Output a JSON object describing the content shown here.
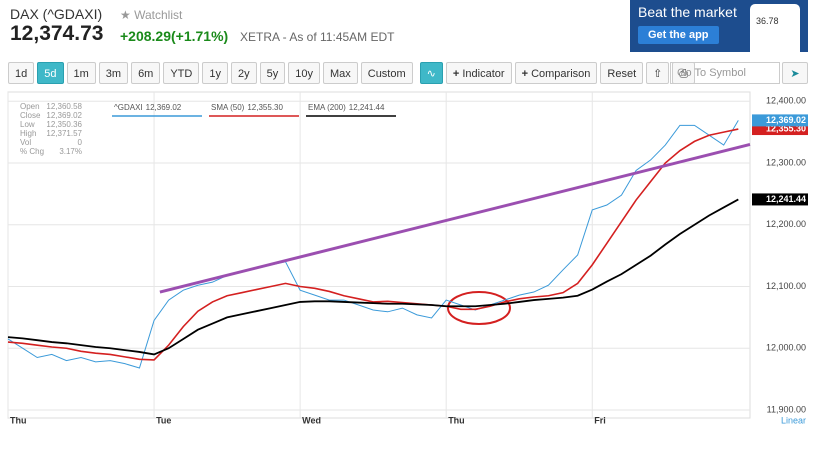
{
  "header": {
    "name": "DAX (^GDAXI)",
    "watchlist": "Watchlist",
    "price": "12,374.73",
    "change": "+208.29(+1.71%)",
    "exchange": "XETRA - As of 11:45AM EDT"
  },
  "ad": {
    "headline": "Beat the market",
    "button": "Get the app",
    "phone_value": "36.78"
  },
  "toolbar": {
    "ranges": [
      "1d",
      "5d",
      "1m",
      "3m",
      "6m",
      "YTD",
      "1y",
      "2y",
      "5y",
      "10y",
      "Max",
      "Custom"
    ],
    "active_range_index": 1,
    "indicator": "Indicator",
    "comparison": "Comparison",
    "reset": "Reset",
    "symbol_placeholder": "Go To Symbol"
  },
  "quote_panel": [
    {
      "label": "Open",
      "value": "12,360.58"
    },
    {
      "label": "Close",
      "value": "12,369.02"
    },
    {
      "label": "Low",
      "value": "12,350.36"
    },
    {
      "label": "High",
      "value": "12,371.57"
    },
    {
      "label": "Vol",
      "value": "0"
    },
    {
      "label": "% Chg",
      "value": "3.17%"
    }
  ],
  "chart_data": {
    "type": "line",
    "scale_label": "Linear",
    "x": [
      0,
      0.1,
      0.2,
      0.3,
      0.4,
      0.5,
      0.6,
      0.7,
      0.8,
      0.9,
      1,
      1.1,
      1.2,
      1.3,
      1.4,
      1.5,
      1.6,
      1.7,
      1.8,
      1.9,
      2,
      2.1,
      2.2,
      2.3,
      2.4,
      2.5,
      2.6,
      2.7,
      2.8,
      2.9,
      3,
      3.1,
      3.2,
      3.3,
      3.4,
      3.5,
      3.6,
      3.7,
      3.8,
      3.9,
      4,
      4.1,
      4.2,
      4.3,
      4.4,
      4.5,
      4.6,
      4.7,
      4.8,
      4.9,
      5
    ],
    "xlim": [
      0,
      5.08
    ],
    "xticks": [
      {
        "value": 0,
        "label": "Thu"
      },
      {
        "value": 1,
        "label": "Tue"
      },
      {
        "value": 2,
        "label": "Wed"
      },
      {
        "value": 3,
        "label": "Thu"
      },
      {
        "value": 4,
        "label": "Fri"
      }
    ],
    "ylim": [
      11887,
      12415
    ],
    "yticks": [
      {
        "value": 11900,
        "label": "11,900.00"
      },
      {
        "value": 12000,
        "label": "12,000.00"
      },
      {
        "value": 12100,
        "label": "12,100.00"
      },
      {
        "value": 12200,
        "label": "12,200.00"
      },
      {
        "value": 12300,
        "label": "12,300.00"
      },
      {
        "value": 12400,
        "label": "12,400.00"
      }
    ],
    "grid": true,
    "series": [
      {
        "name": "^GDAXI",
        "legend_value": "12,369.02",
        "tag": "12,369.02",
        "color": "#3b9ad9",
        "width": 1,
        "values": [
          12015,
          12000,
          11985,
          11990,
          11980,
          11985,
          11978,
          11980,
          11975,
          11968,
          12045,
          12078,
          12094,
          12102,
          12107,
          12118,
          12123,
          12130,
          12135,
          12140,
          12094,
          12086,
          12078,
          12078,
          12070,
          12062,
          12059,
          12065,
          12054,
          12049,
          12078,
          12070,
          12062,
          12070,
          12078,
          12086,
          12091,
          12102,
          12127,
          12151,
          12224,
          12232,
          12248,
          12288,
          12305,
          12329,
          12361,
          12361,
          12345,
          12329,
          12369
        ]
      },
      {
        "name": "SMA (50)",
        "legend_value": "12,355.30",
        "tag": "12,355.30",
        "color": "#d42020",
        "width": 1.6,
        "values": [
          12010,
          12008,
          12005,
          12002,
          12000,
          11995,
          11992,
          11990,
          11986,
          11982,
          11981,
          12005,
          12035,
          12060,
          12075,
          12085,
          12090,
          12095,
          12100,
          12105,
          12100,
          12097,
          12092,
          12085,
          12080,
          12075,
          12076,
          12074,
          12072,
          12070,
          12068,
          12063,
          12063,
          12068,
          12075,
          12080,
          12083,
          12085,
          12090,
          12105,
          12135,
          12170,
          12205,
          12240,
          12270,
          12300,
          12320,
          12335,
          12345,
          12350,
          12355
        ]
      },
      {
        "name": "EMA (200)",
        "legend_value": "12,241.44",
        "tag": "12,241.44",
        "color": "#000000",
        "width": 1.8,
        "values": [
          12018,
          12016,
          12013,
          12010,
          12008,
          12005,
          12002,
          12000,
          11997,
          11994,
          11990,
          12000,
          12015,
          12030,
          12040,
          12050,
          12055,
          12060,
          12065,
          12070,
          12075,
          12076,
          12076,
          12075,
          12074,
          12073,
          12072,
          12072,
          12071,
          12070,
          12068,
          12068,
          12068,
          12070,
          12072,
          12075,
          12078,
          12080,
          12082,
          12085,
          12095,
          12108,
          12120,
          12135,
          12150,
          12168,
          12185,
          12200,
          12215,
          12228,
          12241
        ]
      }
    ],
    "trendline": {
      "color": "#9b4fb0",
      "x": [
        1.04,
        5.08
      ],
      "values": [
        12091,
        12330
      ]
    }
  }
}
